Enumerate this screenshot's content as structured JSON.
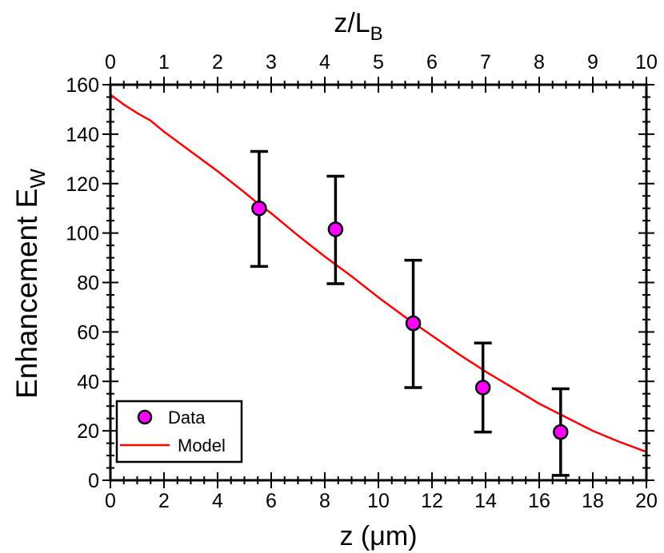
{
  "chart_data": {
    "type": "scatter",
    "title": "",
    "xlabel": {
      "main": "z (",
      "unit": "μm",
      "close": ")"
    },
    "ylabel": {
      "main": "Enhancement E",
      "sub": "W"
    },
    "x2label": {
      "main": "z/L",
      "sub": "B"
    },
    "xlim": [
      0,
      20
    ],
    "ylim": [
      0,
      160
    ],
    "x2lim": [
      0,
      10
    ],
    "xticks": [
      0,
      2,
      4,
      6,
      8,
      10,
      12,
      14,
      16,
      18,
      20
    ],
    "yticks": [
      0,
      20,
      40,
      60,
      80,
      100,
      120,
      140,
      160
    ],
    "x2ticks": [
      0,
      1,
      2,
      3,
      4,
      5,
      6,
      7,
      8,
      9,
      10
    ],
    "grid": false,
    "legend_position": "bottom-left",
    "series": [
      {
        "name": "Data",
        "kind": "scatter-errorbar",
        "color": "#ff00ff",
        "x": [
          5.55,
          8.4,
          11.3,
          13.9,
          16.8
        ],
        "y": [
          110,
          101.5,
          63.5,
          37.5,
          19.5
        ],
        "err_low": [
          86.5,
          79.5,
          37.5,
          19.5,
          2
        ],
        "err_high": [
          133,
          123,
          89,
          55.5,
          37
        ]
      },
      {
        "name": "Model",
        "kind": "line",
        "color": "#ff0000",
        "x": [
          0,
          0.5,
          1,
          1.5,
          2,
          3,
          4,
          5,
          5.5,
          6,
          7,
          8,
          9,
          10,
          11,
          12,
          13,
          14,
          15,
          16,
          17,
          18,
          19,
          20
        ],
        "y": [
          156,
          152,
          148.5,
          145.5,
          141,
          133,
          125,
          116.5,
          112,
          108,
          99,
          90.5,
          82.5,
          74,
          66,
          58.5,
          51,
          44,
          37.5,
          31,
          25.5,
          20,
          15.5,
          11.5
        ]
      }
    ]
  }
}
